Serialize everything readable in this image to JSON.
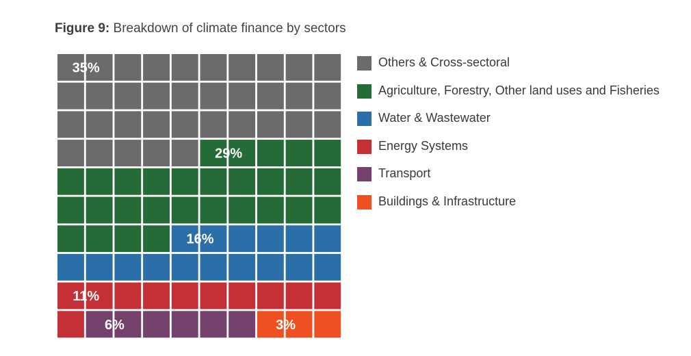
{
  "figure": {
    "label": "Figure 9:",
    "title": "Breakdown of climate finance by sectors"
  },
  "chart_data": {
    "type": "waffle",
    "grid": {
      "rows": 10,
      "cols": 10,
      "unit": "percent"
    },
    "series": [
      {
        "name": "Others & Cross-sectoral",
        "value": 35,
        "label": "35%",
        "color": "#6b6b6b"
      },
      {
        "name": "Agriculture, Forestry, Other land uses and Fisheries",
        "value": 29,
        "label": "29%",
        "color": "#256b38"
      },
      {
        "name": "Water & Wastewater",
        "value": 16,
        "label": "16%",
        "color": "#2a6fa8"
      },
      {
        "name": "Energy Systems",
        "value": 11,
        "label": "11%",
        "color": "#c43035"
      },
      {
        "name": "Transport",
        "value": 6,
        "label": "6%",
        "color": "#73416b"
      },
      {
        "name": "Buildings & Infrastructure",
        "value": 3,
        "label": "3%",
        "color": "#ef5022"
      }
    ],
    "legend_position": "right"
  }
}
